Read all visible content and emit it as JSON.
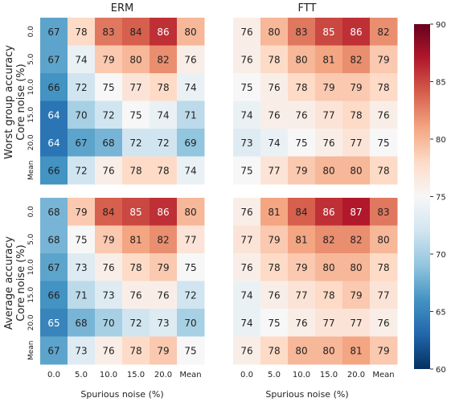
{
  "chart_data": {
    "type": "heatmap",
    "x_ticks": [
      "0.0",
      "5.0",
      "10.0",
      "15.0",
      "20.0",
      "Mean"
    ],
    "y_ticks": [
      "0.0",
      "5.0",
      "10.0",
      "15.0",
      "20.0",
      "Mean"
    ],
    "xlabel": "Spurious noise (%)",
    "colorbar": {
      "min": 60,
      "max": 90,
      "ticks": [
        60,
        65,
        70,
        75,
        80,
        85,
        90
      ],
      "colormap": "RdBu_r",
      "colors": [
        "#053061",
        "#2166ac",
        "#4393c3",
        "#92c5de",
        "#d1e5f0",
        "#f7f7f7",
        "#fddbc7",
        "#f4a582",
        "#d6604d",
        "#b2182b",
        "#67001f"
      ]
    },
    "columns": [
      "ERM",
      "FTT"
    ],
    "rows": [
      {
        "ylabel_line1": "Worst group accuracy",
        "ylabel_line2": "Core noise (%)"
      },
      {
        "ylabel_line1": "Average accuracy",
        "ylabel_line2": "Core noise (%)"
      }
    ],
    "panels": [
      {
        "title": "ERM",
        "row": 0,
        "col": 0,
        "values": [
          [
            67,
            78,
            83,
            84,
            86,
            80
          ],
          [
            67,
            74,
            79,
            80,
            82,
            76
          ],
          [
            66,
            72,
            75,
            77,
            78,
            74
          ],
          [
            64,
            70,
            72,
            75,
            74,
            71
          ],
          [
            64,
            67,
            68,
            72,
            72,
            69
          ],
          [
            66,
            72,
            76,
            78,
            78,
            74
          ]
        ]
      },
      {
        "title": "FTT",
        "row": 0,
        "col": 1,
        "values": [
          [
            76,
            80,
            83,
            85,
            86,
            82
          ],
          [
            76,
            78,
            80,
            81,
            82,
            79
          ],
          [
            75,
            76,
            78,
            79,
            79,
            78
          ],
          [
            74,
            76,
            76,
            77,
            78,
            76
          ],
          [
            73,
            74,
            75,
            76,
            77,
            75
          ],
          [
            75,
            77,
            79,
            80,
            80,
            78
          ]
        ]
      },
      {
        "title": "",
        "row": 1,
        "col": 0,
        "values": [
          [
            68,
            79,
            84,
            85,
            86,
            80
          ],
          [
            68,
            75,
            79,
            81,
            82,
            77
          ],
          [
            67,
            73,
            76,
            78,
            79,
            75
          ],
          [
            66,
            71,
            73,
            76,
            76,
            72
          ],
          [
            65,
            68,
            70,
            72,
            73,
            70
          ],
          [
            67,
            73,
            76,
            78,
            79,
            75
          ]
        ]
      },
      {
        "title": "",
        "row": 1,
        "col": 1,
        "values": [
          [
            76,
            81,
            84,
            86,
            87,
            83
          ],
          [
            77,
            79,
            81,
            82,
            82,
            80
          ],
          [
            76,
            78,
            79,
            80,
            80,
            78
          ],
          [
            74,
            76,
            77,
            78,
            79,
            77
          ],
          [
            74,
            75,
            76,
            77,
            77,
            76
          ],
          [
            76,
            78,
            80,
            80,
            81,
            79
          ]
        ]
      }
    ]
  }
}
